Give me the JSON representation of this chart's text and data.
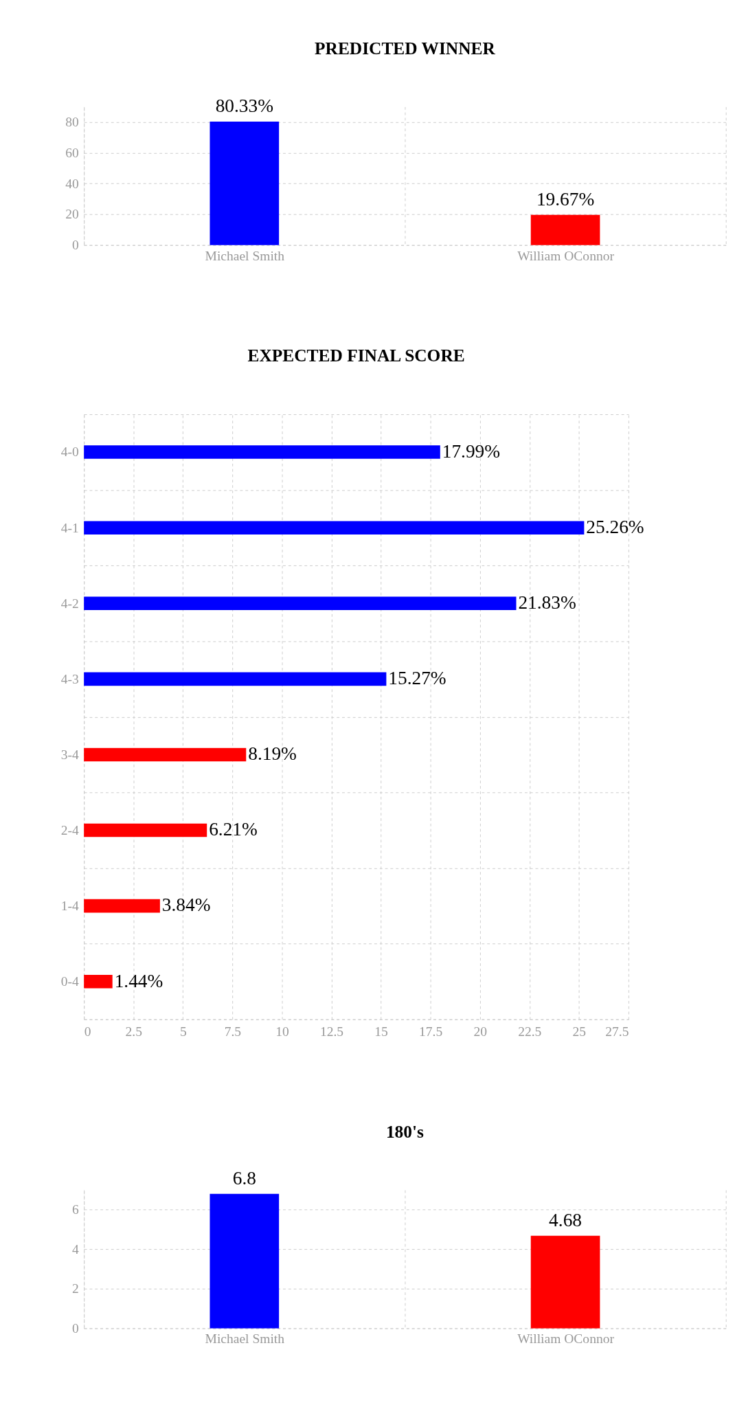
{
  "chart_data": [
    {
      "type": "bar",
      "title": "PREDICTED WINNER",
      "categories": [
        "Michael Smith",
        "William OConnor"
      ],
      "values": [
        80.33,
        19.67
      ],
      "colors": [
        "#0000ff",
        "#ff0000"
      ],
      "value_labels": [
        "80.33%",
        "19.67%"
      ],
      "ylim": [
        0,
        90
      ],
      "yticks": [
        0,
        20,
        40,
        60,
        80
      ],
      "grid": true
    },
    {
      "type": "bar",
      "orientation": "horizontal",
      "title": "EXPECTED FINAL SCORE",
      "categories": [
        "4-0",
        "4-1",
        "4-2",
        "4-3",
        "3-4",
        "2-4",
        "1-4",
        "0-4"
      ],
      "values": [
        17.99,
        25.26,
        21.83,
        15.27,
        8.19,
        6.21,
        3.84,
        1.44
      ],
      "colors": [
        "#0000ff",
        "#0000ff",
        "#0000ff",
        "#0000ff",
        "#ff0000",
        "#ff0000",
        "#ff0000",
        "#ff0000"
      ],
      "value_labels": [
        "17.99%",
        "25.26%",
        "21.83%",
        "15.27%",
        "8.19%",
        "6.21%",
        "3.84%",
        "1.44%"
      ],
      "xlim": [
        0,
        27.5
      ],
      "xticks": [
        0,
        2.5,
        5,
        7.5,
        10,
        12.5,
        15,
        17.5,
        20,
        22.5,
        25,
        27.5
      ],
      "grid": true
    },
    {
      "type": "bar",
      "title": "180's",
      "categories": [
        "Michael Smith",
        "William OConnor"
      ],
      "values": [
        6.8,
        4.68
      ],
      "colors": [
        "#0000ff",
        "#ff0000"
      ],
      "data_labels": true,
      "ylim": [
        0,
        7
      ],
      "yticks": [
        0,
        2,
        4,
        6
      ],
      "grid": true
    }
  ]
}
